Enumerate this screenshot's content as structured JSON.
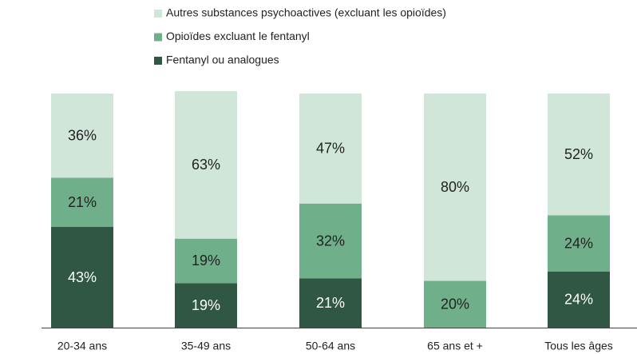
{
  "chart_data": {
    "type": "stacked_bar",
    "categories": [
      "20-34 ans",
      "35-49 ans",
      "50-64 ans",
      "65 ans et +",
      "Tous les âges"
    ],
    "ylim": [
      0,
      100
    ],
    "series": [
      {
        "name": "Fentanyl ou analogues",
        "color": "#2f5744",
        "values": [
          43,
          19,
          21,
          0,
          24
        ],
        "value_labels": [
          "43%",
          "19%",
          "21%",
          null,
          "24%"
        ]
      },
      {
        "name": "Opioïdes excluant le fentanyl",
        "color": "#6fb08b",
        "values": [
          21,
          19,
          32,
          20,
          24
        ],
        "value_labels": [
          "21%",
          "19%",
          "32%",
          "20%",
          "24%"
        ]
      },
      {
        "name": "Autres substances psychoactives (excluant les opioïdes)",
        "color": "#cfe6d9",
        "values": [
          36,
          63,
          47,
          80,
          52
        ],
        "value_labels": [
          "36%",
          "63%",
          "47%",
          "80%",
          "52%"
        ]
      }
    ]
  }
}
